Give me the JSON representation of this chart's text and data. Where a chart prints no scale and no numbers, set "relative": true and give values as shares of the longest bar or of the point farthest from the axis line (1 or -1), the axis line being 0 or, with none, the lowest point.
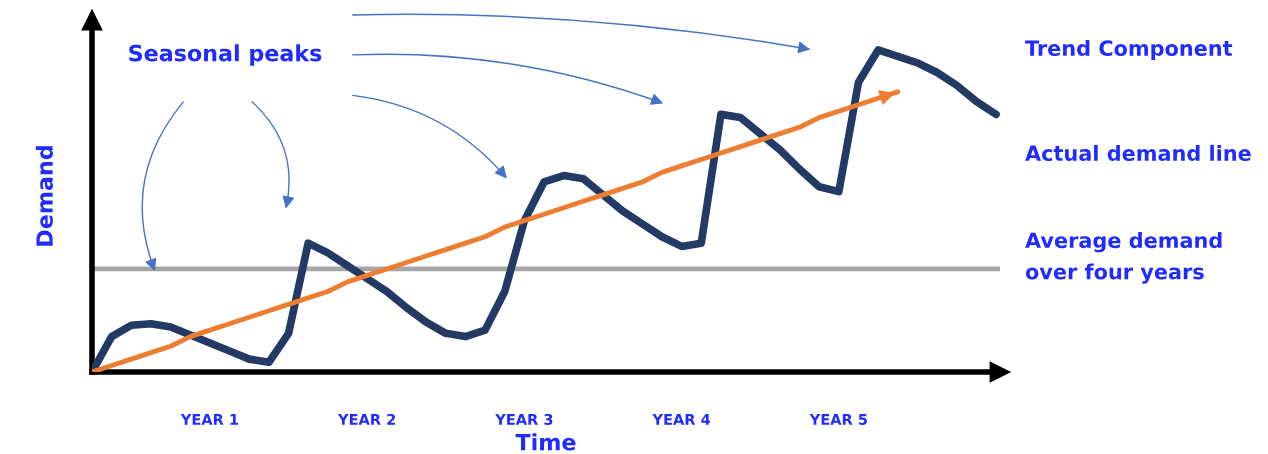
{
  "chart_data": {
    "type": "line",
    "relative": true,
    "xlabel": "Time",
    "ylabel": "Demand",
    "categories": [
      null,
      null,
      null,
      null,
      null,
      null,
      "YEAR 1",
      null,
      null,
      null,
      null,
      null,
      null,
      null,
      "YEAR 2",
      null,
      null,
      null,
      null,
      null,
      null,
      null,
      "YEAR 3",
      null,
      null,
      null,
      null,
      null,
      null,
      null,
      "YEAR 4",
      null,
      null,
      null,
      null,
      null,
      null,
      null,
      "YEAR 5",
      null,
      null,
      null,
      null,
      null,
      null,
      null,
      null
    ],
    "tick_labels": "x",
    "grid": false,
    "legend": false,
    "marker": "none",
    "line_style": "solid",
    "series": [
      {
        "color": "#233a64",
        "values": [
          0,
          0.11,
          0.145,
          0.15,
          0.14,
          0.115,
          0.09,
          0.065,
          0.04,
          0.03,
          0.12,
          0.4,
          0.37,
          0.33,
          0.29,
          0.25,
          0.2,
          0.155,
          0.12,
          0.11,
          0.13,
          0.25,
          0.47,
          0.59,
          0.61,
          0.6,
          0.55,
          0.5,
          0.46,
          0.42,
          0.39,
          0.4,
          0.8,
          0.79,
          0.74,
          0.69,
          0.63,
          0.575,
          0.56,
          0.9,
          1.0,
          0.98,
          0.96,
          0.93,
          0.89,
          0.84,
          0.8
        ]
      },
      {
        "color": "#ed7d31",
        "values": [
          0,
          0.02,
          0.04,
          0.06,
          0.08,
          0.11,
          0.13,
          0.15,
          0.17,
          0.19,
          0.21,
          0.23,
          0.25,
          0.28,
          0.3,
          0.32,
          0.34,
          0.36,
          0.38,
          0.4,
          0.42,
          0.45,
          0.47,
          0.49,
          0.51,
          0.53,
          0.55,
          0.57,
          0.59,
          0.62,
          0.64,
          0.66,
          0.68,
          0.7,
          0.72,
          0.74,
          0.76,
          0.79,
          0.81,
          0.83,
          0.85,
          0.87,
          null,
          null,
          null,
          null,
          null
        ]
      }
    ],
    "ref_lines": [
      {
        "axis": "y",
        "value": 0.32,
        "color": "#a6a6a6",
        "line_style": "solid"
      }
    ],
    "annotations": [
      "Seasonal peaks",
      "Trend Component",
      "Actual demand line",
      "Average demand over four years"
    ]
  }
}
